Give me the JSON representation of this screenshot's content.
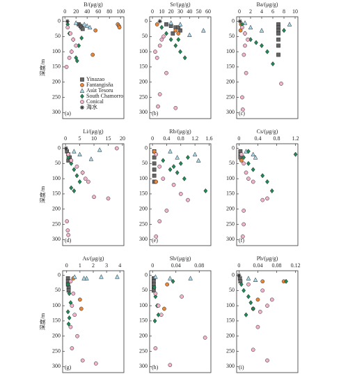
{
  "chart_data": [
    {
      "type": "scatter",
      "title": "B/(μg/g)",
      "panel_label": "(a)",
      "ylabel": "深度/m",
      "xlim": [
        -4,
        106
      ],
      "xticks": [
        0,
        20,
        40,
        60,
        80,
        100
      ],
      "ylim": [
        -15,
        320
      ],
      "yticks": [
        0,
        50,
        100,
        150,
        200,
        250,
        300
      ],
      "y_inverted": true,
      "legend": "lower-right",
      "series": [
        {
          "name": "Yinazao",
          "color": "#666666",
          "marker": "square",
          "x": [
            25,
            28,
            30,
            32
          ],
          "y": [
            10,
            15,
            20,
            25
          ]
        },
        {
          "name": "Fantangisña",
          "color": "#e8873a",
          "marker": "circle",
          "x": [
            95,
            97,
            98,
            55,
            50
          ],
          "y": [
            10,
            15,
            20,
            30,
            110
          ]
        },
        {
          "name": "Asùt Tesoru",
          "color": "#a8d8ea",
          "marker": "triangle",
          "x": [
            20,
            35,
            40,
            45
          ],
          "y": [
            5,
            10,
            15,
            20
          ]
        },
        {
          "name": "South Chamorro",
          "color": "#1f8a55",
          "marker": "diamond",
          "x": [
            5,
            8,
            15,
            25,
            12,
            20,
            22,
            30
          ],
          "y": [
            10,
            40,
            60,
            80,
            100,
            120,
            130,
            55
          ]
        },
        {
          "name": "Conical",
          "color": "#f2b3cc",
          "marker": "circle",
          "x": [
            5,
            10,
            15,
            20,
            12,
            8,
            3
          ],
          "y": [
            20,
            40,
            60,
            80,
            100,
            120,
            150
          ]
        },
        {
          "name": "海水",
          "color": "#333333",
          "marker": "star",
          "x": [
            4.5
          ],
          "y": [
            0
          ]
        }
      ]
    },
    {
      "type": "scatter",
      "title": "Sr/(μg/g)",
      "panel_label": "(b)",
      "xlim": [
        -3,
        63
      ],
      "xticks": [
        0,
        10,
        20,
        30,
        40,
        50,
        60
      ],
      "ylim": [
        -15,
        320
      ],
      "yticks": [
        0,
        50,
        100,
        150,
        200,
        250,
        300
      ],
      "y_inverted": true,
      "series": [
        {
          "color": "#666666",
          "marker": "square",
          "x": [
            15,
            20,
            25,
            30,
            22,
            28
          ],
          "y": [
            10,
            15,
            20,
            30,
            40,
            20
          ]
        },
        {
          "color": "#e8873a",
          "marker": "circle",
          "x": [
            5,
            25,
            28
          ],
          "y": [
            10,
            30,
            40
          ]
        },
        {
          "color": "#a8d8ea",
          "marker": "triangle",
          "x": [
            20,
            30,
            55,
            40
          ],
          "y": [
            5,
            10,
            30,
            45
          ]
        },
        {
          "color": "#1f8a55",
          "marker": "diamond",
          "x": [
            10,
            15,
            20,
            25,
            30,
            35,
            28
          ],
          "y": [
            20,
            40,
            60,
            80,
            100,
            120,
            60
          ]
        },
        {
          "color": "#f2b3cc",
          "marker": "circle",
          "x": [
            3,
            5,
            8,
            10,
            12,
            15,
            8,
            6,
            25
          ],
          "y": [
            100,
            120,
            80,
            60,
            50,
            170,
            240,
            280,
            285
          ]
        },
        {
          "color": "#333333",
          "marker": "star",
          "x": [
            8
          ],
          "y": [
            0
          ]
        }
      ]
    },
    {
      "type": "scatter",
      "title": "Ba/(μg/g)",
      "panel_label": "(c)",
      "xlim": [
        -0.5,
        10.5
      ],
      "xticks": [
        0,
        2,
        4,
        6,
        8,
        10
      ],
      "ylim": [
        -15,
        320
      ],
      "yticks": [
        0,
        50,
        100,
        150,
        200,
        250,
        300
      ],
      "y_inverted": true,
      "series": [
        {
          "color": "#666666",
          "marker": "square",
          "x": [
            7,
            7,
            7,
            7,
            7,
            7,
            7
          ],
          "y": [
            10,
            20,
            30,
            40,
            60,
            80,
            110
          ]
        },
        {
          "color": "#e8873a",
          "marker": "circle",
          "x": [
            0.3,
            0.2
          ],
          "y": [
            10,
            30
          ]
        },
        {
          "color": "#a8d8ea",
          "marker": "triangle",
          "x": [
            1,
            2,
            4,
            9
          ],
          "y": [
            5,
            20,
            30,
            10
          ]
        },
        {
          "color": "#1f8a55",
          "marker": "diamond",
          "x": [
            0.5,
            1,
            2,
            3,
            4,
            5,
            6,
            8
          ],
          "y": [
            10,
            40,
            60,
            70,
            80,
            100,
            140,
            30
          ]
        },
        {
          "color": "#f2b3cc",
          "marker": "circle",
          "x": [
            0.5,
            1,
            1.5,
            1,
            0.8,
            1.2,
            7.5,
            0.5,
            0.6
          ],
          "y": [
            20,
            40,
            60,
            80,
            110,
            170,
            205,
            250,
            290
          ]
        },
        {
          "color": "#333333",
          "marker": "star",
          "x": [
            0.1
          ],
          "y": [
            0
          ]
        }
      ]
    },
    {
      "type": "scatter",
      "title": "Li/(μg/g)",
      "panel_label": "(d)",
      "ylabel": "深度/m",
      "xlim": [
        -1,
        20.5
      ],
      "xticks": [
        0,
        5,
        10,
        15,
        20
      ],
      "ylim": [
        -15,
        320
      ],
      "yticks": [
        0,
        50,
        100,
        150,
        200,
        250,
        300
      ],
      "y_inverted": true,
      "series": [
        {
          "color": "#666666",
          "marker": "square",
          "x": [
            0.5,
            1,
            1.5,
            1
          ],
          "y": [
            10,
            20,
            30,
            40
          ]
        },
        {
          "color": "#e8873a",
          "marker": "circle",
          "x": [
            1,
            2
          ],
          "y": [
            20,
            40
          ]
        },
        {
          "color": "#a8d8ea",
          "marker": "triangle",
          "x": [
            3,
            5,
            9,
            12
          ],
          "y": [
            10,
            20,
            35,
            5
          ]
        },
        {
          "color": "#1f8a55",
          "marker": "diamond",
          "x": [
            1,
            2,
            3,
            4,
            5,
            6,
            2,
            3
          ],
          "y": [
            30,
            50,
            70,
            90,
            110,
            80,
            130,
            140
          ]
        },
        {
          "color": "#f2b3cc",
          "marker": "circle",
          "x": [
            1,
            2,
            4,
            6,
            7,
            8,
            10,
            15,
            18,
            0.5,
            0.8,
            1
          ],
          "y": [
            20,
            40,
            60,
            80,
            100,
            110,
            160,
            165,
            0,
            240,
            270,
            285
          ]
        },
        {
          "color": "#333333",
          "marker": "star",
          "x": [
            0.2
          ],
          "y": [
            0
          ]
        }
      ]
    },
    {
      "type": "scatter",
      "title": "Rb/(μg/g)",
      "panel_label": "(e)",
      "xlim": [
        -0.08,
        1.65
      ],
      "xticks": [
        0,
        0.4,
        0.8,
        1.2,
        1.6
      ],
      "ylim": [
        -15,
        320
      ],
      "yticks": [
        0,
        50,
        100,
        150,
        200,
        250,
        300
      ],
      "y_inverted": true,
      "series": [
        {
          "color": "#666666",
          "marker": "square",
          "x": [
            0.05,
            0.05,
            0.05,
            0.05,
            0.05,
            0.05
          ],
          "y": [
            10,
            30,
            50,
            70,
            90,
            110
          ]
        },
        {
          "color": "#e8873a",
          "marker": "circle",
          "x": [
            0.05,
            0.1
          ],
          "y": [
            10,
            110
          ]
        },
        {
          "color": "#a8d8ea",
          "marker": "triangle",
          "x": [
            0.5,
            0.7,
            1.2,
            1.3
          ],
          "y": [
            10,
            30,
            20,
            40
          ]
        },
        {
          "color": "#1f8a55",
          "marker": "diamond",
          "x": [
            0.3,
            0.6,
            0.8,
            1.0,
            0.7,
            0.9,
            1.5,
            0.5
          ],
          "y": [
            40,
            60,
            50,
            30,
            80,
            100,
            140,
            70
          ]
        },
        {
          "color": "#f2b3cc",
          "marker": "circle",
          "x": [
            0.1,
            0.2,
            0.3,
            0.6,
            0.8,
            1.0,
            0.4,
            0.2,
            0.1
          ],
          "y": [
            20,
            60,
            100,
            120,
            150,
            170,
            205,
            240,
            290
          ]
        }
      ]
    },
    {
      "type": "scatter",
      "title": "Cs/(μg/g)",
      "panel_label": "(f)",
      "xlim": [
        -0.05,
        1.25
      ],
      "xticks": [
        0,
        0.4,
        0.8,
        1.2
      ],
      "ylim": [
        -15,
        320
      ],
      "yticks": [
        0,
        50,
        100,
        150,
        200,
        250,
        300
      ],
      "y_inverted": true,
      "series": [
        {
          "color": "#666666",
          "marker": "square",
          "x": [
            0.03,
            0.03,
            0.03
          ],
          "y": [
            10,
            20,
            30
          ]
        },
        {
          "color": "#e8873a",
          "marker": "circle",
          "x": [
            0.05
          ],
          "y": [
            40
          ]
        },
        {
          "color": "#a8d8ea",
          "marker": "triangle",
          "x": [
            0.15,
            0.3,
            0.35
          ],
          "y": [
            10,
            20,
            30
          ]
        },
        {
          "color": "#1f8a55",
          "marker": "diamond",
          "x": [
            0.1,
            0.2,
            0.3,
            0.5,
            0.6,
            0.7,
            1.2,
            0.2
          ],
          "y": [
            30,
            50,
            70,
            90,
            110,
            140,
            20,
            10
          ]
        },
        {
          "color": "#f2b3cc",
          "marker": "circle",
          "x": [
            0.05,
            0.1,
            0.15,
            0.2,
            0.3,
            0.5,
            0.6,
            0.1,
            0.1,
            0.08
          ],
          "y": [
            20,
            50,
            80,
            100,
            110,
            170,
            165,
            205,
            250,
            290
          ]
        }
      ]
    },
    {
      "type": "scatter",
      "title": "As/(μg/g)",
      "panel_label": "(g)",
      "ylabel": "深度/m",
      "xlim": [
        -0.3,
        4.3
      ],
      "xticks": [
        0,
        1,
        2,
        3,
        4
      ],
      "ylim": [
        -15,
        320
      ],
      "yticks": [
        0,
        50,
        100,
        150,
        200,
        250,
        300
      ],
      "y_inverted": true,
      "series": [
        {
          "color": "#666666",
          "marker": "square",
          "x": [
            0.1,
            0.1,
            0.1,
            0.15,
            0.15
          ],
          "y": [
            10,
            20,
            30,
            40,
            50
          ]
        },
        {
          "color": "#e8873a",
          "marker": "circle",
          "x": [
            0.5,
            1,
            1.1
          ],
          "y": [
            10,
            80,
            110
          ]
        },
        {
          "color": "#a8d8ea",
          "marker": "triangle",
          "x": [
            0.6,
            1.5,
            2.6,
            3.8,
            1.3
          ],
          "y": [
            5,
            10,
            5,
            5,
            10
          ]
        },
        {
          "color": "#1f8a55",
          "marker": "diamond",
          "x": [
            0.1,
            0.2,
            0.3,
            0.1,
            0.2,
            0.15
          ],
          "y": [
            30,
            60,
            90,
            120,
            140,
            160
          ]
        },
        {
          "color": "#f2b3cc",
          "marker": "circle",
          "x": [
            0.3,
            0.5,
            0.4,
            0.6,
            0.3,
            0.8,
            1.2,
            2.2,
            0.4
          ],
          "y": [
            20,
            60,
            100,
            130,
            170,
            200,
            280,
            290,
            240
          ]
        }
      ]
    },
    {
      "type": "scatter",
      "title": "Sb/(μg/g)",
      "panel_label": "(h)",
      "xlim": [
        -0.005,
        0.1
      ],
      "xticks": [
        0,
        0.04,
        0.08
      ],
      "ylim": [
        -15,
        320
      ],
      "yticks": [
        0,
        50,
        100,
        150,
        200,
        250,
        300
      ],
      "y_inverted": true,
      "series": [
        {
          "color": "#666666",
          "marker": "square",
          "x": [
            0.002,
            0.002,
            0.002,
            0.002,
            0.002
          ],
          "y": [
            10,
            20,
            30,
            40,
            50
          ]
        },
        {
          "color": "#e8873a",
          "marker": "circle",
          "x": [
            0.025,
            0.02
          ],
          "y": [
            30,
            110
          ]
        },
        {
          "color": "#a8d8ea",
          "marker": "triangle",
          "x": [
            0.03,
            0.065,
            0.005
          ],
          "y": [
            10,
            10,
            5
          ]
        },
        {
          "color": "#1f8a55",
          "marker": "diamond",
          "x": [
            0.003,
            0.005,
            0.008,
            0.01,
            0.035,
            0.004
          ],
          "y": [
            40,
            70,
            100,
            130,
            20,
            150
          ]
        },
        {
          "color": "#f2b3cc",
          "marker": "circle",
          "x": [
            0.005,
            0.01,
            0.015,
            0.05,
            0.09,
            0.005,
            0.03
          ],
          "y": [
            60,
            100,
            130,
            70,
            205,
            240,
            295
          ]
        }
      ]
    },
    {
      "type": "scatter",
      "title": "Pb/(μg/g)",
      "panel_label": "(i)",
      "xlim": [
        -0.005,
        0.125
      ],
      "xticks": [
        0,
        0.04,
        0.08,
        0.12
      ],
      "ylim": [
        -15,
        320
      ],
      "yticks": [
        0,
        50,
        100,
        150,
        200,
        250,
        300
      ],
      "y_inverted": true,
      "series": [
        {
          "color": "#666666",
          "marker": "square",
          "x": [
            0.002,
            0.003
          ],
          "y": [
            10,
            20
          ]
        },
        {
          "color": "#e8873a",
          "marker": "circle",
          "x": [
            0.05,
            0.095,
            0.03,
            0.04
          ],
          "y": [
            20,
            20,
            110,
            80
          ]
        },
        {
          "color": "#a8d8ea",
          "marker": "triangle",
          "x": [
            0.02,
            0.035
          ],
          "y": [
            10,
            15
          ]
        },
        {
          "color": "#1f8a55",
          "marker": "diamond",
          "x": [
            0.005,
            0.01,
            0.02,
            0.025,
            0.03,
            0.015,
            0.1
          ],
          "y": [
            30,
            50,
            70,
            90,
            110,
            130,
            20
          ]
        },
        {
          "color": "#f2b3cc",
          "marker": "circle",
          "x": [
            0.02,
            0.05,
            0.07,
            0.06,
            0.045,
            0.04,
            0.06,
            0.03
          ],
          "y": [
            30,
            50,
            80,
            100,
            120,
            170,
            280,
            245
          ]
        },
        {
          "color": "#333333",
          "marker": "star",
          "x": [
            0
          ],
          "y": [
            0
          ]
        }
      ]
    }
  ]
}
